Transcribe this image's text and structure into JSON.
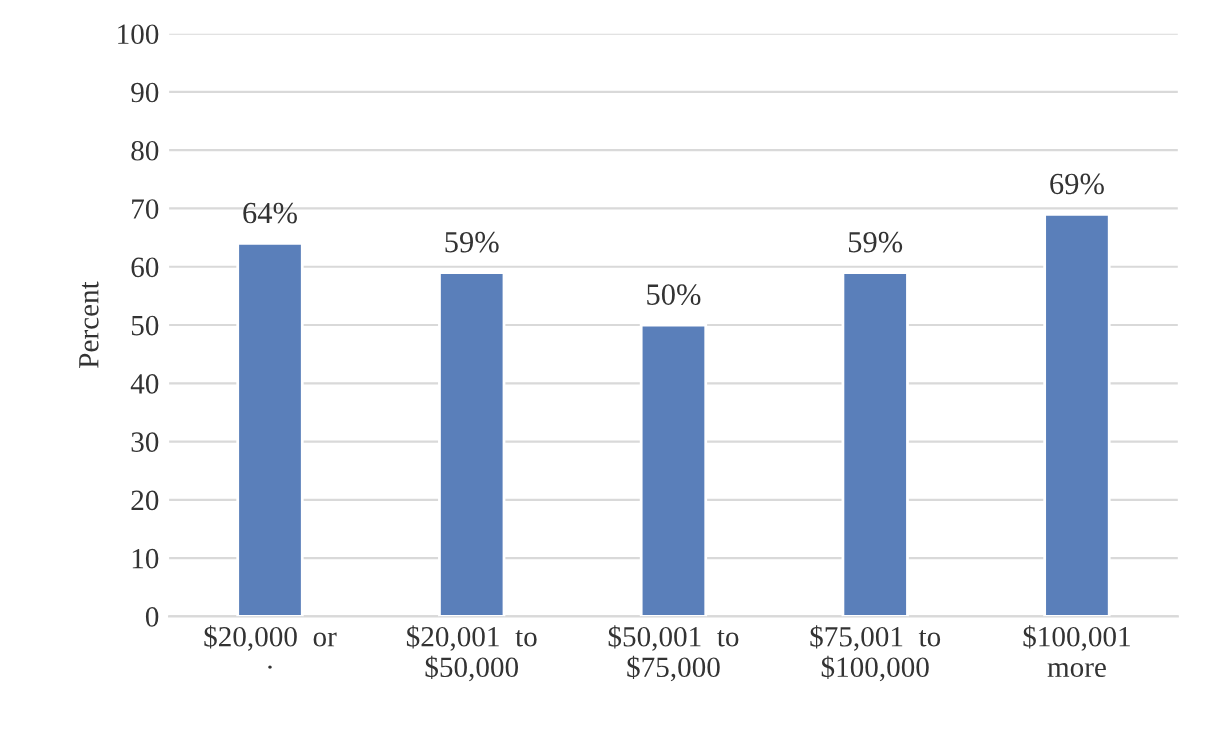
{
  "chart_data": {
    "type": "bar",
    "ylabel": "Percent",
    "categories": [
      "$20,000  or\n·",
      "$20,001  to\n$50,000",
      "$50,001  to\n$75,000",
      "$75,001  to\n$100,000",
      "$100,001\nmore"
    ],
    "values": [
      64,
      59,
      50,
      59,
      69
    ],
    "value_labels": [
      "64%",
      "59%",
      "50%",
      "59%",
      "69%"
    ],
    "color": "#5a7fba",
    "ylim": [
      0,
      100
    ],
    "yticks": [
      0,
      10,
      20,
      30,
      40,
      50,
      60,
      70,
      80,
      90,
      100
    ],
    "grid": "y"
  }
}
